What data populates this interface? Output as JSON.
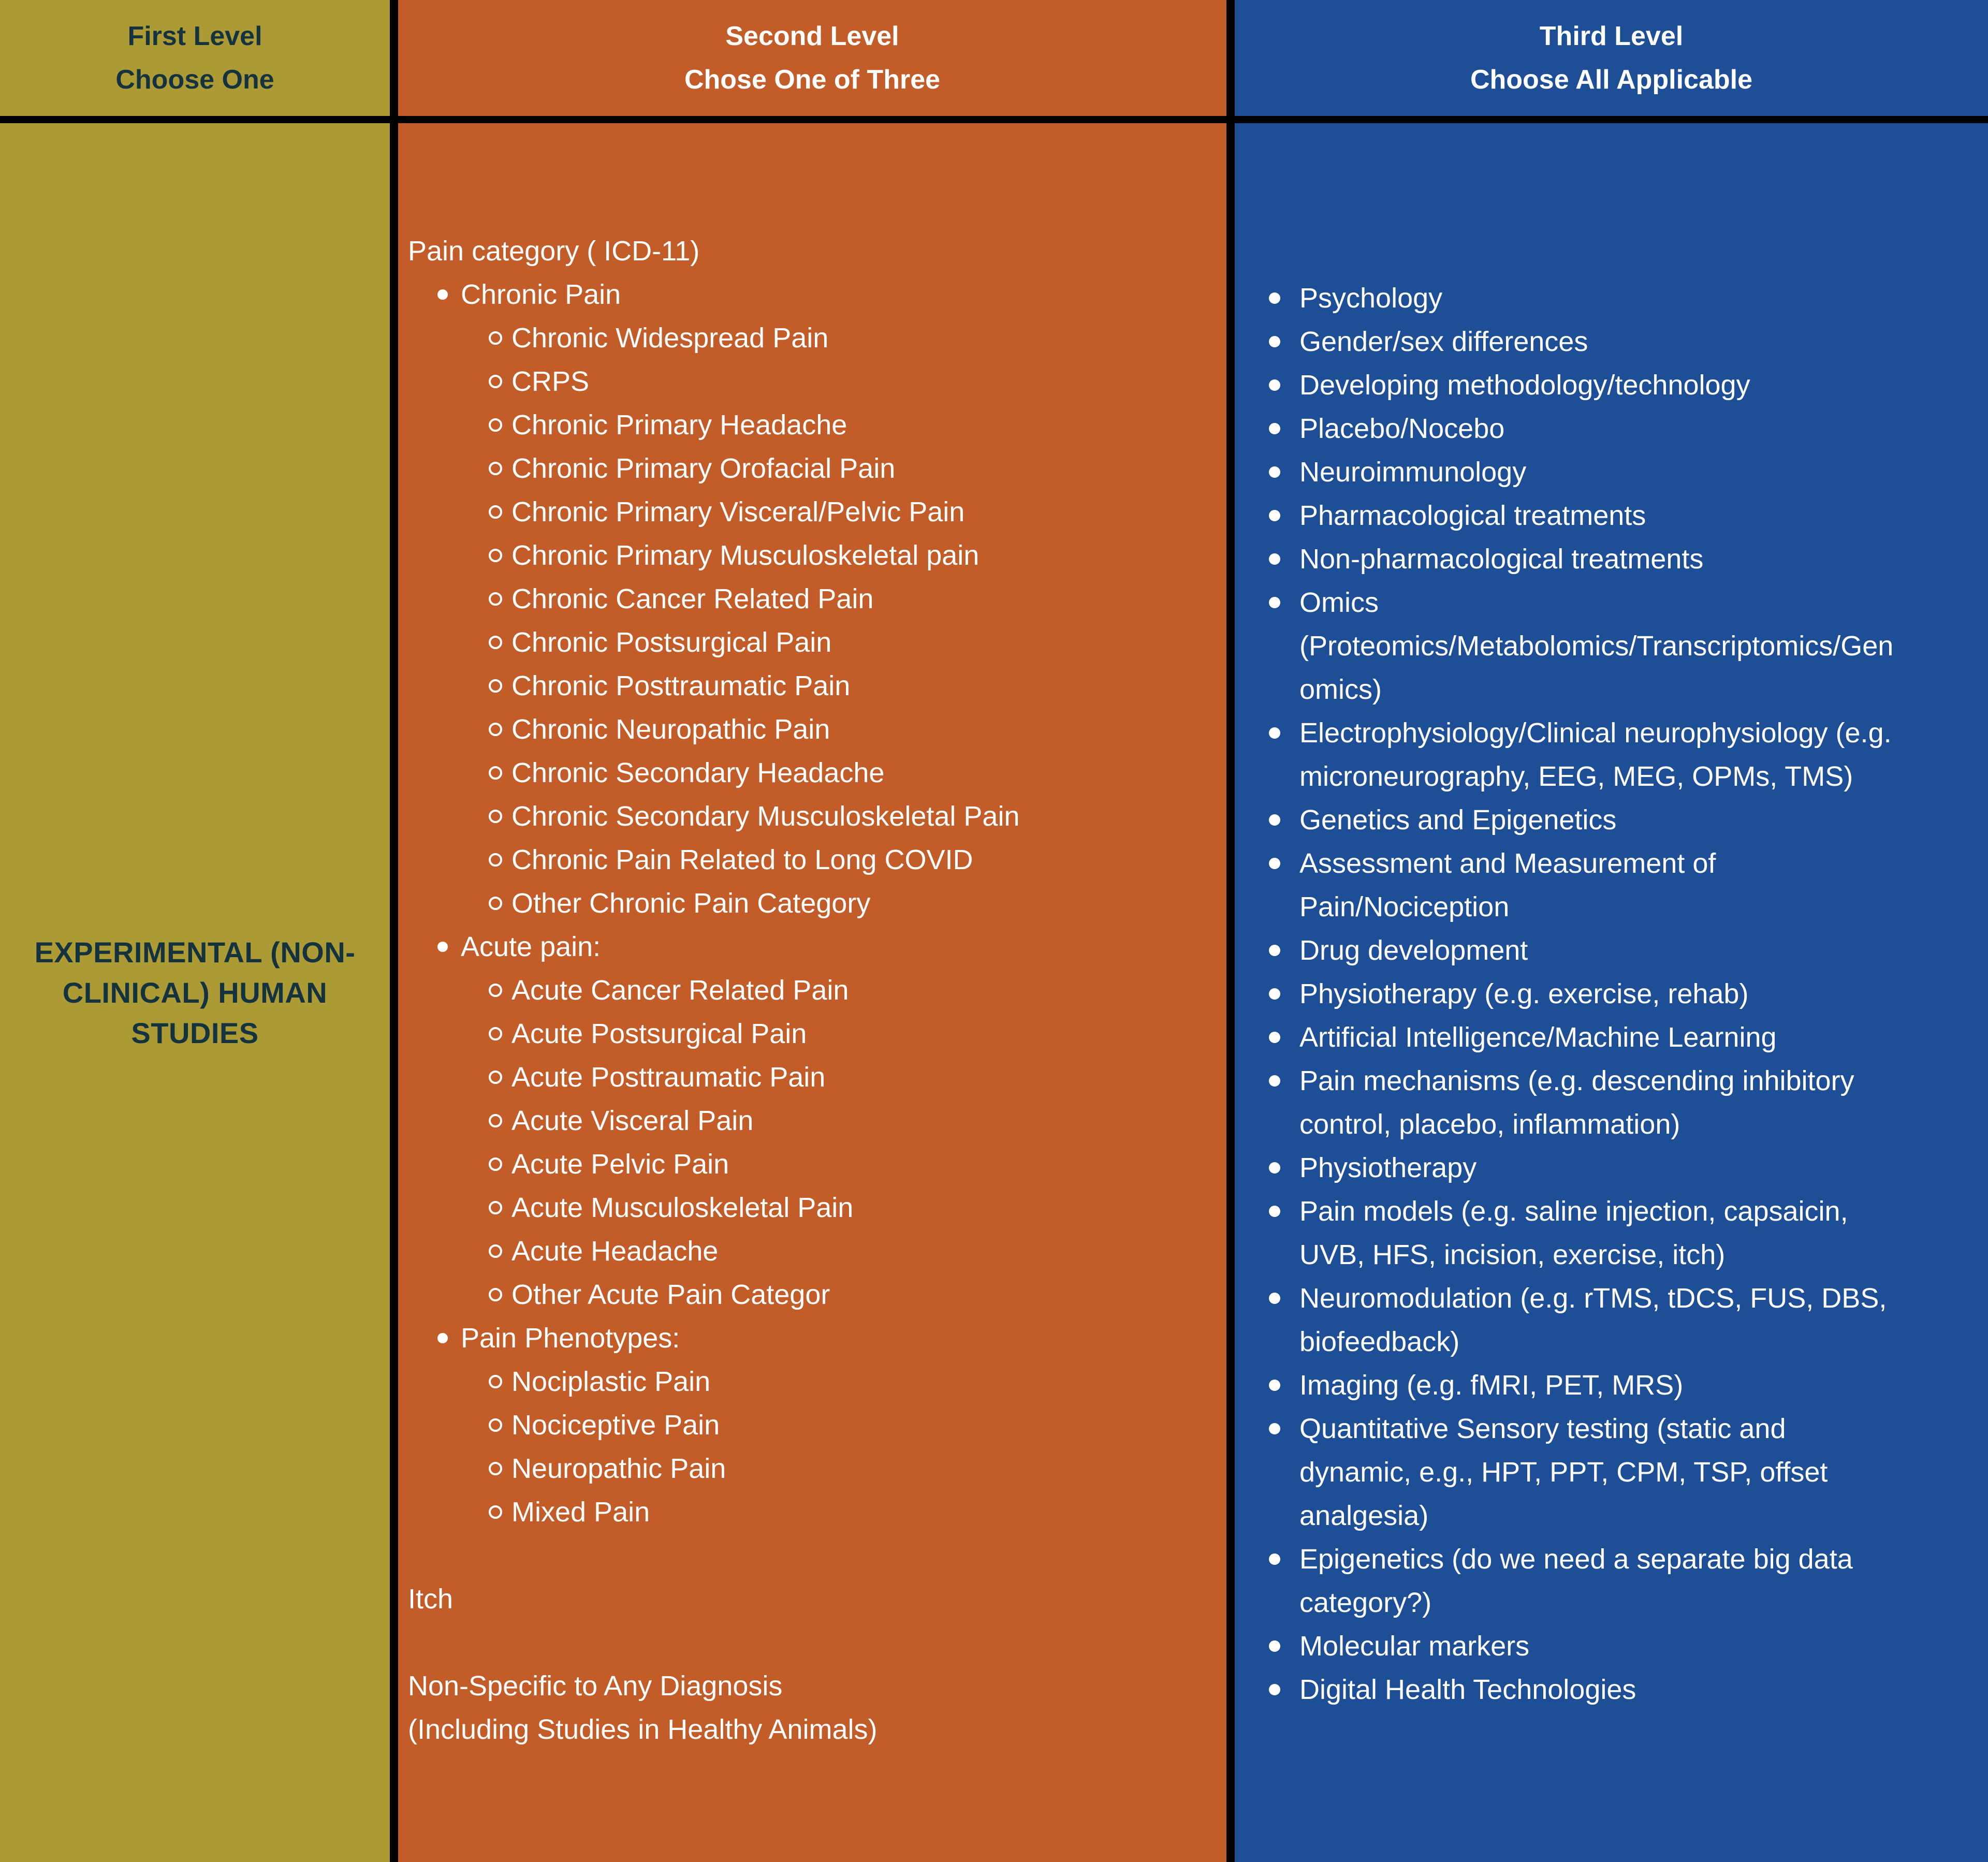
{
  "palette": {
    "first_level_bg": "#AC9A34",
    "second_level_bg": "#C25D29",
    "third_level_bg": "#1E4E95",
    "header_text_dark": "#14333F",
    "text_white": "#FFFFFF",
    "border": "#000000"
  },
  "headers": {
    "first": {
      "line1": "First Level",
      "line2": "Choose One"
    },
    "second": {
      "line1": "Second Level",
      "line2": "Chose One of Three"
    },
    "third": {
      "line1": "Third Level",
      "line2": "Choose All Applicable"
    }
  },
  "first_level": {
    "label": "EXPERIMENTAL (NON-CLINICAL) HUMAN STUDIES"
  },
  "second_level": {
    "intro": "Pain category ( ICD-11)",
    "groups": [
      {
        "label": "Chronic Pain",
        "items": [
          "Chronic Widespread Pain",
          "CRPS",
          "Chronic Primary Headache",
          "Chronic Primary Orofacial Pain",
          "Chronic Primary Visceral/Pelvic Pain",
          "Chronic Primary Musculoskeletal pain",
          "Chronic Cancer Related Pain",
          "Chronic Postsurgical Pain",
          "Chronic Posttraumatic Pain",
          "Chronic Neuropathic Pain",
          "Chronic Secondary Headache",
          "Chronic Secondary Musculoskeletal Pain",
          "Chronic Pain Related to Long COVID",
          "Other Chronic Pain Category"
        ]
      },
      {
        "label": "Acute pain:",
        "items": [
          "Acute Cancer Related Pain",
          "Acute Postsurgical Pain",
          "Acute Posttraumatic Pain",
          "Acute Visceral Pain",
          "Acute Pelvic Pain",
          "Acute Musculoskeletal Pain",
          "Acute Headache",
          "Other Acute Pain Categor"
        ]
      },
      {
        "label": "Pain Phenotypes:",
        "items": [
          "Nociplastic Pain",
          "Nociceptive Pain",
          "Neuropathic Pain",
          "Mixed Pain"
        ]
      }
    ],
    "standalone": "Itch",
    "footer_lines": [
      "Non-Specific to Any Diagnosis",
      "(Including Studies in Healthy Animals)"
    ]
  },
  "third_level": {
    "items": [
      "Psychology",
      "Gender/sex differences",
      "Developing methodology/technology",
      "Placebo/Nocebo",
      "Neuroimmunology",
      "Pharmacological treatments",
      "Non-pharmacological treatments",
      "Omics (Proteomics/Metabolomics/Transcriptomics/Genomics)",
      "Electrophysiology/Clinical neurophysiology (e.g. microneurography, EEG, MEG, OPMs, TMS)",
      "Genetics and Epigenetics",
      "Assessment and Measurement of Pain/Nociception",
      "Drug development",
      "Physiotherapy (e.g. exercise, rehab)",
      "Artificial Intelligence/Machine Learning",
      "Pain mechanisms (e.g. descending inhibitory control, placebo, inflammation)",
      "Physiotherapy",
      "Pain models (e.g. saline injection, capsaicin, UVB, HFS, incision, exercise, itch)",
      "Neuromodulation (e.g. rTMS, tDCS, FUS, DBS, biofeedback)",
      "Imaging (e.g. fMRI, PET, MRS)",
      "Quantitative Sensory testing (static and dynamic, e.g., HPT, PPT, CPM, TSP, offset analgesia)",
      "Epigenetics (do we need a separate big data category?)",
      "Molecular markers",
      "Digital Health Technologies"
    ]
  }
}
